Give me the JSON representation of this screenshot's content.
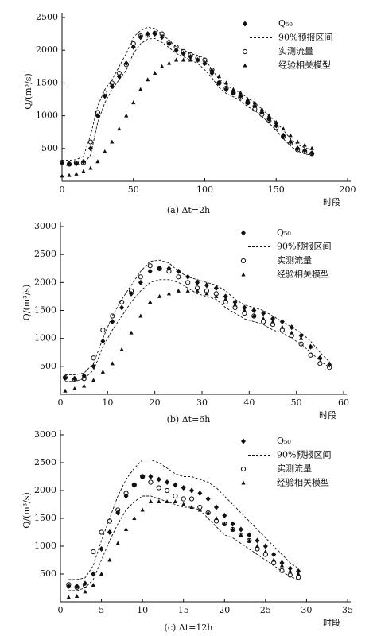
{
  "chart_data": [
    {
      "type": "scatter",
      "caption": "(a) Δt=2h",
      "x_label": "时段",
      "y_label": "Q/(m³/s)",
      "xlim": [
        0,
        200
      ],
      "ylim": [
        0,
        2500
      ],
      "xticks": [
        0,
        50,
        100,
        150,
        200
      ],
      "yticks": [
        500,
        1000,
        1500,
        2000,
        2500
      ],
      "x": [
        0,
        5,
        10,
        15,
        20,
        25,
        30,
        35,
        40,
        45,
        50,
        55,
        60,
        65,
        70,
        75,
        80,
        85,
        90,
        95,
        100,
        105,
        110,
        115,
        120,
        125,
        130,
        135,
        140,
        145,
        150,
        155,
        160,
        165,
        170,
        175
      ],
      "series": [
        {
          "name": "Q₅₀",
          "marker": "diamond",
          "color": "#111111",
          "values": [
            280,
            270,
            270,
            300,
            500,
            1000,
            1300,
            1450,
            1600,
            1800,
            2050,
            2200,
            2250,
            2250,
            2200,
            2100,
            2000,
            1950,
            1900,
            1850,
            1800,
            1650,
            1500,
            1400,
            1350,
            1300,
            1200,
            1150,
            1050,
            950,
            850,
            700,
            600,
            500,
            470,
            430
          ]
        },
        {
          "name": "90%预报区间",
          "marker": "dashed",
          "color": "#111111",
          "upper": [
            320,
            320,
            330,
            380,
            700,
            1150,
            1400,
            1550,
            1750,
            1950,
            2200,
            2300,
            2350,
            2330,
            2250,
            2150,
            2050,
            2000,
            1950,
            1920,
            1880,
            1700,
            1560,
            1470,
            1400,
            1350,
            1270,
            1200,
            1100,
            1000,
            900,
            780,
            650,
            560,
            510,
            480
          ],
          "lower": [
            250,
            240,
            250,
            260,
            400,
            900,
            1200,
            1400,
            1550,
            1700,
            1950,
            2100,
            2170,
            2180,
            2120,
            2040,
            1950,
            1900,
            1850,
            1800,
            1700,
            1580,
            1430,
            1340,
            1290,
            1230,
            1140,
            1080,
            990,
            890,
            780,
            650,
            540,
            460,
            420,
            390
          ]
        },
        {
          "name": "实测流量",
          "marker": "circle",
          "color": "#111111",
          "values": [
            290,
            260,
            280,
            280,
            600,
            1050,
            1350,
            1500,
            1650,
            1780,
            2100,
            2220,
            2230,
            2260,
            2250,
            2120,
            2050,
            1980,
            1930,
            1880,
            1850,
            1700,
            1500,
            1420,
            1350,
            1280,
            1200,
            1100,
            1020,
            920,
            820,
            680,
            580,
            480,
            450,
            420
          ]
        },
        {
          "name": "经验相关模型",
          "marker": "triangle",
          "color": "#111111",
          "values": [
            80,
            90,
            110,
            150,
            200,
            300,
            450,
            600,
            800,
            1000,
            1200,
            1400,
            1550,
            1650,
            1750,
            1800,
            1850,
            1850,
            1850,
            1850,
            1800,
            1700,
            1600,
            1500,
            1400,
            1350,
            1250,
            1200,
            1100,
            1000,
            900,
            800,
            700,
            600,
            550,
            500
          ]
        }
      ]
    },
    {
      "type": "scatter",
      "caption": "(b) Δt=6h",
      "x_label": "时段",
      "y_label": "Q/(m³/s)",
      "xlim": [
        0,
        60
      ],
      "ylim": [
        0,
        3000
      ],
      "xticks": [
        0,
        10,
        20,
        30,
        40,
        50,
        60
      ],
      "yticks": [
        500,
        1000,
        1500,
        2000,
        2500,
        3000
      ],
      "x": [
        1,
        3,
        5,
        7,
        9,
        11,
        13,
        15,
        17,
        19,
        21,
        23,
        25,
        27,
        29,
        31,
        33,
        35,
        37,
        39,
        41,
        43,
        45,
        47,
        49,
        51,
        53,
        55,
        57
      ],
      "series": [
        {
          "name": "Q₅₀",
          "marker": "diamond",
          "color": "#111111",
          "values": [
            290,
            280,
            330,
            500,
            950,
            1300,
            1550,
            1800,
            2000,
            2200,
            2250,
            2250,
            2200,
            2100,
            2000,
            1950,
            1900,
            1750,
            1650,
            1550,
            1500,
            1450,
            1350,
            1300,
            1200,
            1050,
            850,
            650,
            530
          ]
        },
        {
          "name": "90%预报区间",
          "marker": "dashed",
          "color": "#111111",
          "upper": [
            350,
            350,
            380,
            550,
            1000,
            1400,
            1700,
            1950,
            2200,
            2380,
            2400,
            2350,
            2200,
            2100,
            2050,
            2000,
            1950,
            1850,
            1700,
            1600,
            1550,
            1500,
            1400,
            1300,
            1200,
            1100,
            950,
            750,
            580
          ],
          "lower": [
            230,
            230,
            280,
            430,
            850,
            1150,
            1400,
            1650,
            1850,
            2000,
            2050,
            2050,
            2000,
            1900,
            1800,
            1750,
            1700,
            1550,
            1450,
            1350,
            1300,
            1250,
            1150,
            1100,
            1000,
            900,
            750,
            600,
            480
          ]
        },
        {
          "name": "实测流量",
          "marker": "circle",
          "color": "#111111",
          "values": [
            300,
            260,
            280,
            650,
            1150,
            1400,
            1650,
            1850,
            2100,
            2300,
            2250,
            2200,
            2100,
            2000,
            1900,
            1850,
            1800,
            1650,
            1550,
            1450,
            1400,
            1300,
            1250,
            1150,
            1050,
            900,
            700,
            550,
            480
          ]
        },
        {
          "name": "经验相关模型",
          "marker": "triangle",
          "color": "#111111",
          "values": [
            60,
            100,
            150,
            250,
            400,
            550,
            800,
            1100,
            1400,
            1650,
            1750,
            1800,
            1850,
            1850,
            1850,
            1800,
            1750,
            1700,
            1600,
            1500,
            1400,
            1350,
            1300,
            1200,
            1100,
            1000,
            850,
            650,
            550
          ]
        }
      ]
    },
    {
      "type": "scatter",
      "caption": "(c) Δt=12h",
      "x_label": "时段",
      "y_label": "Q/(m³/s)",
      "xlim": [
        0,
        35
      ],
      "ylim": [
        0,
        3000
      ],
      "xticks": [
        0,
        5,
        10,
        15,
        20,
        25,
        30,
        35
      ],
      "yticks": [
        500,
        1000,
        1500,
        2000,
        2500,
        3000
      ],
      "x": [
        1,
        2,
        3,
        4,
        5,
        6,
        7,
        8,
        9,
        10,
        11,
        12,
        13,
        14,
        15,
        16,
        17,
        18,
        19,
        20,
        21,
        22,
        23,
        24,
        25,
        26,
        27,
        28,
        29
      ],
      "series": [
        {
          "name": "Q₅₀",
          "marker": "diamond",
          "color": "#111111",
          "values": [
            280,
            280,
            330,
            500,
            950,
            1250,
            1600,
            1900,
            2100,
            2250,
            2250,
            2200,
            2150,
            2100,
            2050,
            2000,
            1950,
            1850,
            1700,
            1550,
            1400,
            1300,
            1200,
            1100,
            1000,
            850,
            700,
            600,
            550
          ]
        },
        {
          "name": "90%预报区间",
          "marker": "dashed",
          "color": "#111111",
          "upper": [
            400,
            400,
            430,
            650,
            1100,
            1500,
            1900,
            2200,
            2400,
            2550,
            2550,
            2500,
            2400,
            2300,
            2250,
            2250,
            2200,
            2150,
            2050,
            1900,
            1750,
            1600,
            1450,
            1300,
            1150,
            1000,
            850,
            700,
            600
          ],
          "lower": [
            200,
            200,
            250,
            400,
            750,
            1100,
            1400,
            1650,
            1800,
            1900,
            1900,
            1850,
            1800,
            1750,
            1700,
            1700,
            1650,
            1500,
            1350,
            1200,
            1150,
            1050,
            950,
            850,
            750,
            650,
            550,
            450,
            400
          ]
        },
        {
          "name": "实测流量",
          "marker": "circle",
          "color": "#111111",
          "values": [
            310,
            260,
            300,
            900,
            1250,
            1450,
            1650,
            1950,
            2100,
            2250,
            2150,
            2050,
            2000,
            1900,
            1850,
            1850,
            1700,
            1600,
            1450,
            1400,
            1300,
            1200,
            1100,
            950,
            850,
            700,
            560,
            480,
            440
          ]
        },
        {
          "name": "经验相关模型",
          "marker": "triangle",
          "color": "#111111",
          "values": [
            80,
            100,
            180,
            300,
            500,
            750,
            1050,
            1300,
            1500,
            1650,
            1800,
            1800,
            1800,
            1800,
            1750,
            1700,
            1650,
            1600,
            1500,
            1400,
            1300,
            1200,
            1100,
            1000,
            900,
            750,
            650,
            550,
            500
          ]
        }
      ]
    }
  ]
}
